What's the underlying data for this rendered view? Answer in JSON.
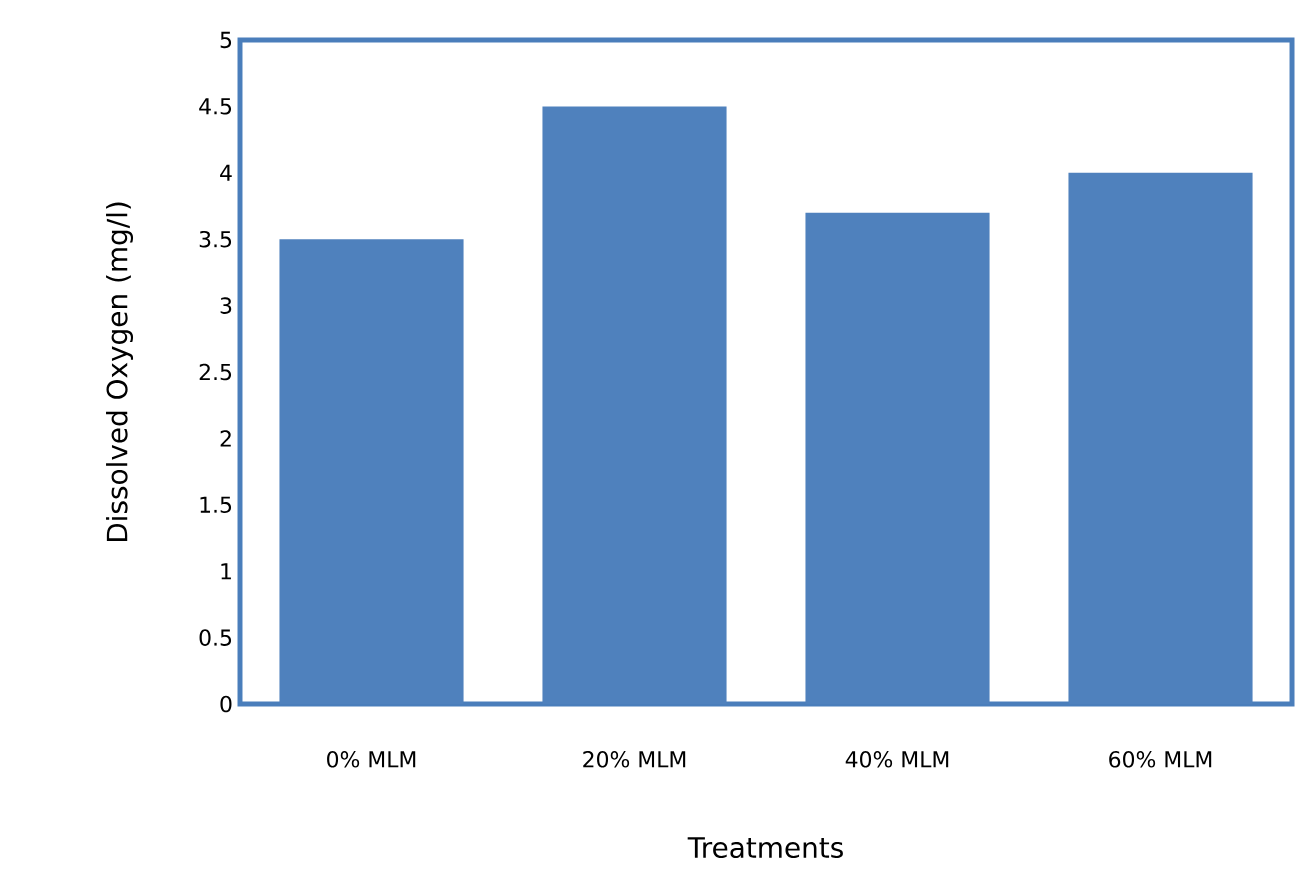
{
  "chart_data": {
    "type": "bar",
    "xlabel": "Treatments",
    "ylabel": "Dissolved Oxygen (mg/l)",
    "categories": [
      "0% MLM",
      "20% MLM",
      "40% MLM",
      "60% MLM"
    ],
    "values": [
      3.5,
      4.5,
      3.7,
      4.0
    ],
    "color": "#4f81bd",
    "ylim": [
      0,
      5
    ],
    "yticks": [
      0,
      0.5,
      1,
      1.5,
      2,
      2.5,
      3,
      3.5,
      4,
      4.5,
      5
    ],
    "grid": false
  }
}
